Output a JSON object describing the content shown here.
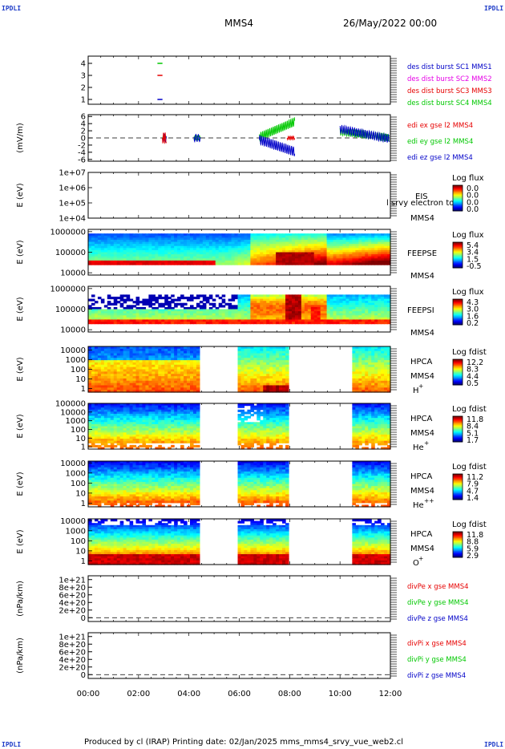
{
  "header": {
    "corner_tag": "IPDLI",
    "spacecraft": "MMS4",
    "datetime": "26/May/2022 00:00"
  },
  "footer": {
    "text": "Produced by cl (IRAP)   Printing date: 02/Jan/2025   mms_mms4_srvy_vue_web2.cl"
  },
  "colors": {
    "blue": "#0000c8",
    "magenta": "#e600e6",
    "red": "#e60000",
    "green": "#00c800"
  },
  "chart_data": [
    {
      "type": "scatter",
      "panel": "burst availability",
      "x_ticks": [
        "00:00",
        "02:00",
        "04:00",
        "06:00",
        "08:00",
        "10:00",
        "12:00"
      ],
      "y_ticks": [
        "1",
        "2",
        "3",
        "4"
      ],
      "ylim": [
        0.6,
        4.6
      ],
      "legend": [
        {
          "label": "des dist burst SC1 MMS1",
          "color": "#0000c8"
        },
        {
          "label": "des dist burst SC2 MMS2",
          "color": "#e600e6"
        },
        {
          "label": "des dist burst SC3 MMS3",
          "color": "#e60000"
        },
        {
          "label": "des dist burst SC4 MMS4",
          "color": "#00c800"
        }
      ],
      "segments": [
        {
          "series": "SC1",
          "y": 1,
          "x": [
            2.75,
            2.95
          ]
        },
        {
          "series": "SC3",
          "y": 3,
          "x": [
            2.75,
            2.95
          ]
        },
        {
          "series": "SC4",
          "y": 4,
          "x": [
            2.75,
            2.95
          ]
        }
      ]
    },
    {
      "type": "line",
      "panel": "EDI E field",
      "ylabel": "(mV/m)",
      "y_ticks": [
        "-6",
        "-4",
        "-2",
        "0",
        "2",
        "4",
        "6"
      ],
      "ylim": [
        -6.5,
        6.5
      ],
      "legend": [
        {
          "label": "edi ex gse l2 MMS4",
          "color": "#e60000"
        },
        {
          "label": "edi ey gse l2 MMS4",
          "color": "#00c800"
        },
        {
          "label": "edi ez gse l2 MMS4",
          "color": "#0000c8"
        }
      ]
    },
    {
      "type": "heatmap",
      "panel": "EIS",
      "ylabel": "E (eV)",
      "y_ticks": [
        "1e+04",
        "1e+05",
        "1e+06",
        "1e+07"
      ],
      "instrument": "EIS",
      "overlay_label": "l srvy electron to",
      "sc": "MMS4",
      "colorbar_title": "Log flux",
      "colorbar_ticks": [
        "0.0",
        "0.0",
        "0.0",
        "0.0"
      ]
    },
    {
      "type": "heatmap",
      "panel": "FEEPS electrons",
      "ylabel": "E (eV)",
      "y_ticks": [
        "10000",
        "100000",
        "1000000"
      ],
      "instrument": "FEEPSE",
      "sc": "MMS4",
      "colorbar_title": "Log flux",
      "colorbar_ticks": [
        "5.4",
        "3.4",
        "1.5",
        "-0.5"
      ]
    },
    {
      "type": "heatmap",
      "panel": "FEEPS ions",
      "ylabel": "E (eV)",
      "y_ticks": [
        "10000",
        "100000",
        "1000000"
      ],
      "instrument": "FEEPSI",
      "sc": "MMS4",
      "colorbar_title": "Log flux",
      "colorbar_ticks": [
        "4.3",
        "3.0",
        "1.6",
        "0.2"
      ]
    },
    {
      "type": "heatmap",
      "panel": "HPCA H+",
      "ylabel": "E (eV)",
      "y_ticks": [
        "1",
        "10",
        "100",
        "1000",
        "10000"
      ],
      "instrument": "HPCA",
      "sc": "MMS4",
      "species": "H",
      "charge": "+",
      "colorbar_title": "Log fdist",
      "colorbar_ticks": [
        "12.2",
        "8.3",
        "4.4",
        "0.5"
      ]
    },
    {
      "type": "heatmap",
      "panel": "HPCA He+",
      "ylabel": "E (eV)",
      "y_ticks": [
        "1",
        "10",
        "100",
        "1000",
        "10000",
        "100000"
      ],
      "instrument": "HPCA",
      "sc": "MMS4",
      "species": "He",
      "charge": "+",
      "colorbar_title": "Log fdist",
      "colorbar_ticks": [
        "11.8",
        "8.4",
        "5.1",
        "1.7"
      ]
    },
    {
      "type": "heatmap",
      "panel": "HPCA He++",
      "ylabel": "E (eV)",
      "y_ticks": [
        "1",
        "10",
        "100",
        "1000",
        "10000"
      ],
      "instrument": "HPCA",
      "sc": "MMS4",
      "species": "He",
      "charge": "++",
      "colorbar_title": "Log fdist",
      "colorbar_ticks": [
        "11.2",
        "7.9",
        "4.7",
        "1.4"
      ]
    },
    {
      "type": "heatmap",
      "panel": "HPCA O+",
      "ylabel": "E (eV)",
      "y_ticks": [
        "1",
        "10",
        "100",
        "1000",
        "10000"
      ],
      "instrument": "HPCA",
      "sc": "MMS4",
      "species": "O",
      "charge": "+",
      "colorbar_title": "Log fdist",
      "colorbar_ticks": [
        "11.8",
        "8.8",
        "5.9",
        "2.9"
      ]
    },
    {
      "type": "line",
      "panel": "divPe",
      "ylabel": "(nPa/km)",
      "y_ticks": [
        "0",
        "2e+20",
        "4e+20",
        "6e+20",
        "8e+20",
        "1e+21"
      ],
      "ylim": [
        -1e+20,
        1.1e+21
      ],
      "legend": [
        {
          "label": "divPe x gse MMS4",
          "color": "#e60000"
        },
        {
          "label": "divPe y gse MMS4",
          "color": "#00c800"
        },
        {
          "label": "divPe z gse MMS4",
          "color": "#0000c8"
        }
      ]
    },
    {
      "type": "line",
      "panel": "divPi",
      "ylabel": "(nPa/km)",
      "y_ticks": [
        "0",
        "2e+20",
        "4e+20",
        "6e+20",
        "8e+20",
        "1e+21"
      ],
      "ylim": [
        -1e+20,
        1.1e+21
      ],
      "legend": [
        {
          "label": "divPi x gse MMS4",
          "color": "#e60000"
        },
        {
          "label": "divPi y gse MMS4",
          "color": "#00c800"
        },
        {
          "label": "divPi z gse MMS4",
          "color": "#0000c8"
        }
      ],
      "x_ticks": [
        "00:00",
        "02:00",
        "04:00",
        "06:00",
        "08:00",
        "10:00",
        "12:00"
      ],
      "xlim_hours": [
        0,
        12
      ]
    }
  ]
}
